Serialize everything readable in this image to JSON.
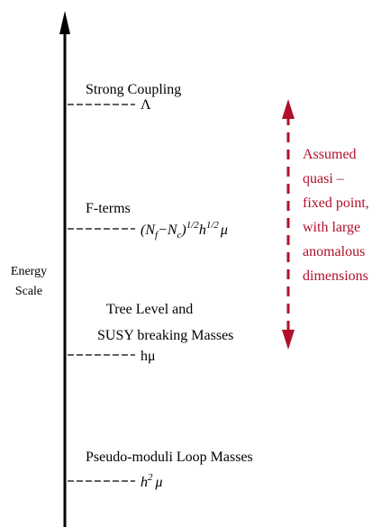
{
  "axis_label": [
    "Energy",
    "Scale"
  ],
  "levels": [
    {
      "label": [
        "Strong Coupling"
      ],
      "scale": [
        "Λ"
      ]
    },
    {
      "label": [
        "F-terms"
      ],
      "scale": [
        "(N",
        "f",
        "−N",
        "c",
        ")",
        "1/2",
        "h",
        "1/2",
        "μ"
      ]
    },
    {
      "label": [
        "Tree Level and",
        "SUSY breaking Masses"
      ],
      "scale": [
        "hμ"
      ]
    },
    {
      "label": [
        "Pseudo-moduli Loop Masses"
      ],
      "scale": [
        "h",
        "2",
        "μ"
      ]
    }
  ],
  "annotation": [
    "Assumed",
    "quasi –",
    "fixed point,",
    "with large",
    "anomalous",
    "dimensions"
  ]
}
